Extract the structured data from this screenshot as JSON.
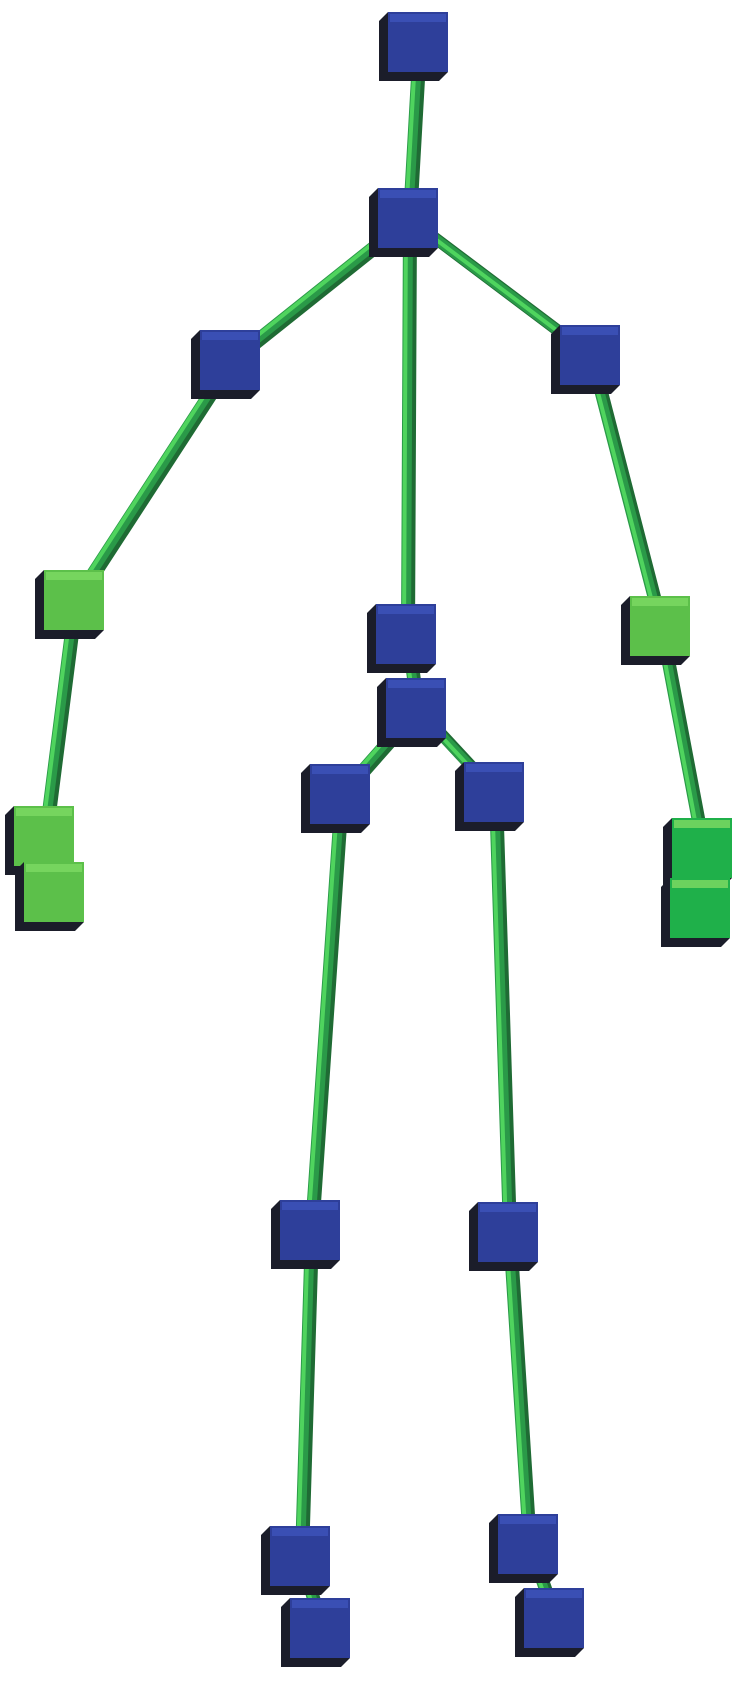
{
  "diagram": {
    "subject": "stick-figure-skeleton",
    "colors": {
      "background": "#ffffff",
      "bone": "#2a9a48",
      "bone_highlight": "#4fd45e",
      "joint_blue": "#2e3f9a",
      "joint_blue_top": "#3c52b8",
      "joint_green": "#5cc04a",
      "joint_green_top": "#7ad862",
      "joint_teal": "#1fb04a",
      "shadow": "#1b1d2a"
    },
    "joints": [
      {
        "id": "head",
        "tint": "blue"
      },
      {
        "id": "neck",
        "tint": "blue"
      },
      {
        "id": "left-shoulder",
        "tint": "blue"
      },
      {
        "id": "right-shoulder",
        "tint": "blue"
      },
      {
        "id": "left-elbow",
        "tint": "green"
      },
      {
        "id": "right-elbow",
        "tint": "green"
      },
      {
        "id": "left-wrist",
        "tint": "green"
      },
      {
        "id": "left-hand",
        "tint": "green"
      },
      {
        "id": "right-wrist",
        "tint": "teal"
      },
      {
        "id": "right-hand",
        "tint": "teal"
      },
      {
        "id": "spine",
        "tint": "blue"
      },
      {
        "id": "hip-center",
        "tint": "blue"
      },
      {
        "id": "left-hip",
        "tint": "blue"
      },
      {
        "id": "right-hip",
        "tint": "blue"
      },
      {
        "id": "left-knee",
        "tint": "blue"
      },
      {
        "id": "right-knee",
        "tint": "blue"
      },
      {
        "id": "left-ankle",
        "tint": "blue"
      },
      {
        "id": "right-ankle",
        "tint": "blue"
      },
      {
        "id": "left-foot",
        "tint": "blue"
      },
      {
        "id": "right-foot",
        "tint": "blue"
      }
    ],
    "bones": [
      [
        "head",
        "neck"
      ],
      [
        "neck",
        "left-shoulder"
      ],
      [
        "neck",
        "right-shoulder"
      ],
      [
        "neck",
        "spine"
      ],
      [
        "left-shoulder",
        "left-elbow"
      ],
      [
        "left-elbow",
        "left-wrist"
      ],
      [
        "left-wrist",
        "left-hand"
      ],
      [
        "right-shoulder",
        "right-elbow"
      ],
      [
        "right-elbow",
        "right-wrist"
      ],
      [
        "right-wrist",
        "right-hand"
      ],
      [
        "spine",
        "hip-center"
      ],
      [
        "hip-center",
        "left-hip"
      ],
      [
        "hip-center",
        "right-hip"
      ],
      [
        "left-hip",
        "left-knee"
      ],
      [
        "right-hip",
        "right-knee"
      ],
      [
        "left-knee",
        "left-ankle"
      ],
      [
        "right-knee",
        "right-ankle"
      ],
      [
        "left-ankle",
        "left-foot"
      ],
      [
        "right-ankle",
        "right-foot"
      ]
    ]
  }
}
